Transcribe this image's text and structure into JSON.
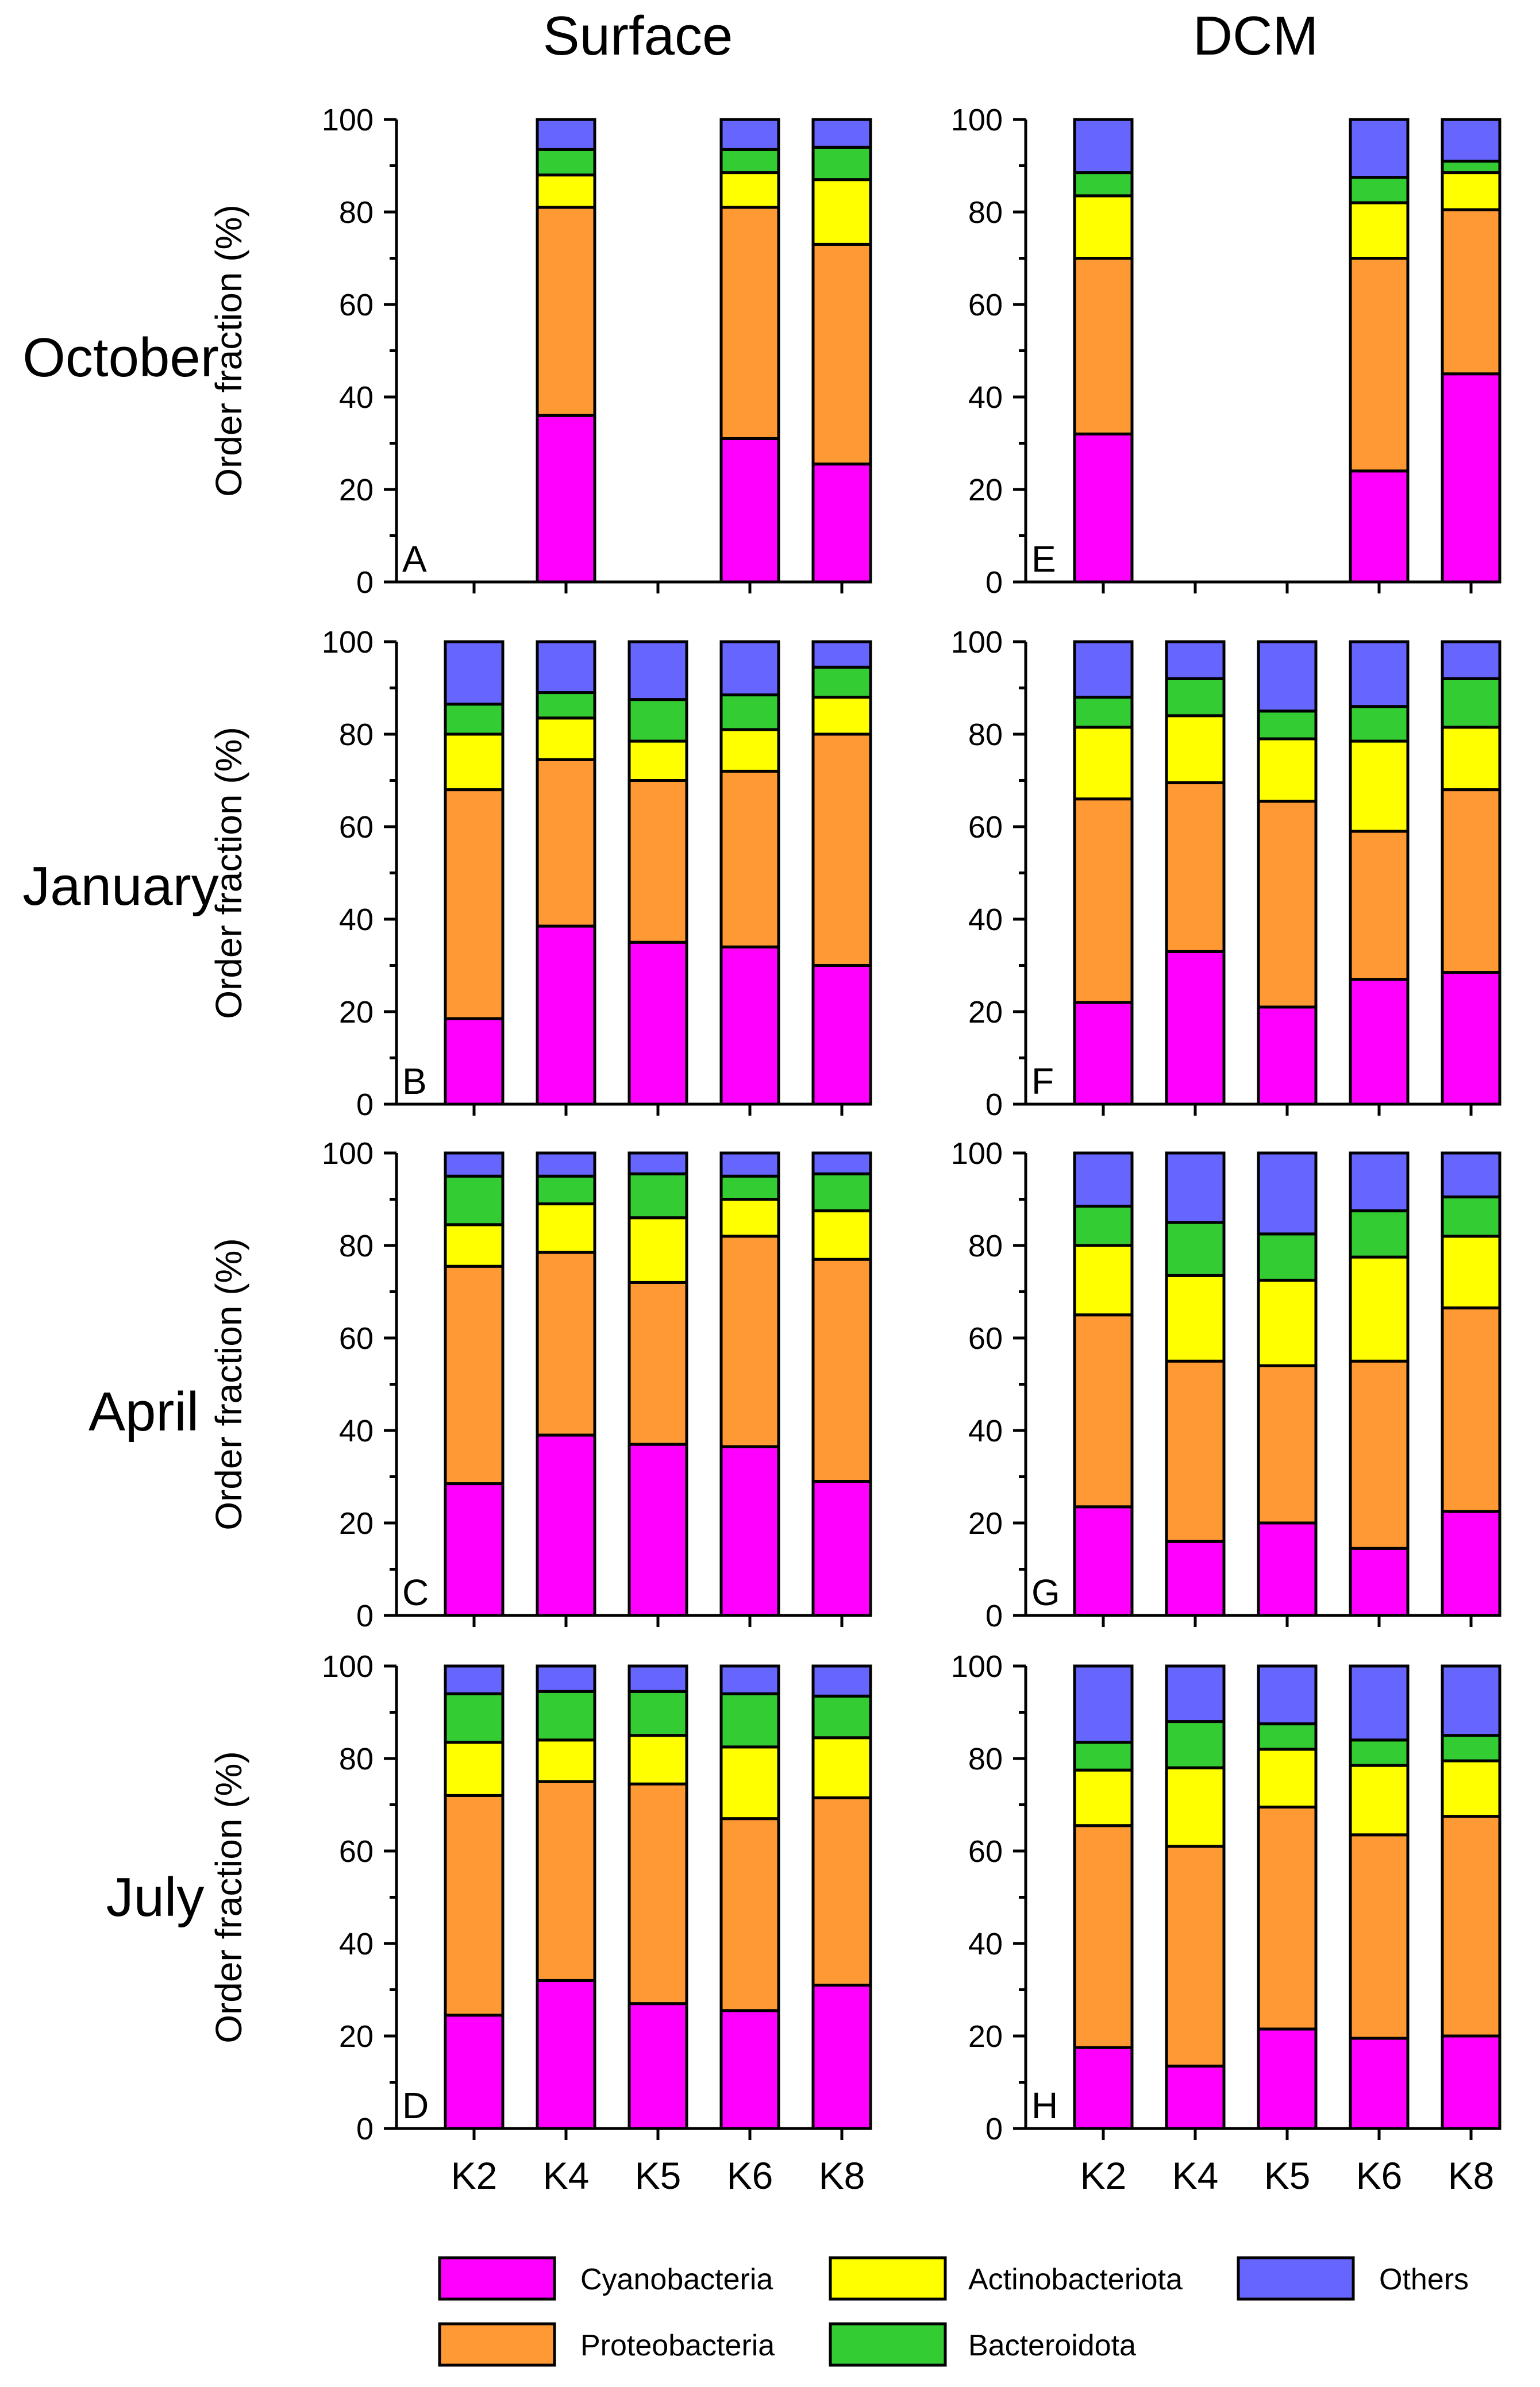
{
  "column_titles": [
    "Surface",
    "DCM"
  ],
  "row_labels": [
    "October",
    "January",
    "April",
    "July"
  ],
  "legend": [
    {
      "name": "Cyanobacteria",
      "color": "#ff00ff"
    },
    {
      "name": "Proteobacteria",
      "color": "#ff9933"
    },
    {
      "name": "Actinobacteriota",
      "color": "#ffff00"
    },
    {
      "name": "Bacteroidota",
      "color": "#33cc33"
    },
    {
      "name": "Others",
      "color": "#6666ff"
    }
  ],
  "chart_data": [
    {
      "type": "bar",
      "stacked": true,
      "panel": "A",
      "depth": "Surface",
      "month": "October",
      "ylabel": "Order fraction (%)",
      "ylim": [
        0,
        100
      ],
      "yticks": [
        0,
        20,
        40,
        60,
        80,
        100
      ],
      "categories": [
        "K2",
        "K4",
        "K5",
        "K6",
        "K8"
      ],
      "series": [
        {
          "name": "Cyanobacteria",
          "values": [
            null,
            36,
            null,
            31,
            25.5
          ]
        },
        {
          "name": "Proteobacteria",
          "values": [
            null,
            45,
            null,
            50,
            47.5
          ]
        },
        {
          "name": "Actinobacteriota",
          "values": [
            null,
            7,
            null,
            7.5,
            14
          ]
        },
        {
          "name": "Bacteroidota",
          "values": [
            null,
            5.5,
            null,
            5,
            7
          ]
        },
        {
          "name": "Others",
          "values": [
            null,
            6.5,
            null,
            6.5,
            6
          ]
        }
      ]
    },
    {
      "type": "bar",
      "stacked": true,
      "panel": "B",
      "depth": "Surface",
      "month": "January",
      "ylabel": "Order fraction (%)",
      "ylim": [
        0,
        100
      ],
      "yticks": [
        0,
        20,
        40,
        60,
        80,
        100
      ],
      "categories": [
        "K2",
        "K4",
        "K5",
        "K6",
        "K8"
      ],
      "series": [
        {
          "name": "Cyanobacteria",
          "values": [
            18.5,
            38.5,
            35,
            34,
            30
          ]
        },
        {
          "name": "Proteobacteria",
          "values": [
            49.5,
            36,
            35,
            38,
            50
          ]
        },
        {
          "name": "Actinobacteriota",
          "values": [
            12,
            9,
            8.5,
            9,
            8
          ]
        },
        {
          "name": "Bacteroidota",
          "values": [
            6.5,
            5.5,
            9,
            7.5,
            6.5
          ]
        },
        {
          "name": "Others",
          "values": [
            13.5,
            11,
            12.5,
            11.5,
            5.5
          ]
        }
      ]
    },
    {
      "type": "bar",
      "stacked": true,
      "panel": "C",
      "depth": "Surface",
      "month": "April",
      "ylabel": "Order fraction (%)",
      "ylim": [
        0,
        100
      ],
      "yticks": [
        0,
        20,
        40,
        60,
        80,
        100
      ],
      "categories": [
        "K2",
        "K4",
        "K5",
        "K6",
        "K8"
      ],
      "series": [
        {
          "name": "Cyanobacteria",
          "values": [
            28.5,
            39,
            37,
            36.5,
            29
          ]
        },
        {
          "name": "Proteobacteria",
          "values": [
            47,
            39.5,
            35,
            45.5,
            48
          ]
        },
        {
          "name": "Actinobacteriota",
          "values": [
            9,
            10.5,
            14,
            8,
            10.5
          ]
        },
        {
          "name": "Bacteroidota",
          "values": [
            10.5,
            6,
            9.5,
            5,
            8
          ]
        },
        {
          "name": "Others",
          "values": [
            5,
            5,
            4.5,
            5,
            4.5
          ]
        }
      ]
    },
    {
      "type": "bar",
      "stacked": true,
      "panel": "D",
      "depth": "Surface",
      "month": "July",
      "ylabel": "Order fraction (%)",
      "ylim": [
        0,
        100
      ],
      "yticks": [
        0,
        20,
        40,
        60,
        80,
        100
      ],
      "xlabels_shown": true,
      "categories": [
        "K2",
        "K4",
        "K5",
        "K6",
        "K8"
      ],
      "series": [
        {
          "name": "Cyanobacteria",
          "values": [
            24.5,
            32,
            27,
            25.5,
            31
          ]
        },
        {
          "name": "Proteobacteria",
          "values": [
            47.5,
            43,
            47.5,
            41.5,
            40.5
          ]
        },
        {
          "name": "Actinobacteriota",
          "values": [
            11.5,
            9,
            10.5,
            15.5,
            13
          ]
        },
        {
          "name": "Bacteroidota",
          "values": [
            10.5,
            10.5,
            9.5,
            11.5,
            9
          ]
        },
        {
          "name": "Others",
          "values": [
            6,
            5.5,
            5.5,
            6,
            6.5
          ]
        }
      ]
    },
    {
      "type": "bar",
      "stacked": true,
      "panel": "E",
      "depth": "DCM",
      "month": "October",
      "ylim": [
        0,
        100
      ],
      "yticks": [
        0,
        20,
        40,
        60,
        80,
        100
      ],
      "categories": [
        "K2",
        "K4",
        "K5",
        "K6",
        "K8"
      ],
      "series": [
        {
          "name": "Cyanobacteria",
          "values": [
            32,
            null,
            null,
            24,
            45
          ]
        },
        {
          "name": "Proteobacteria",
          "values": [
            38,
            null,
            null,
            46,
            35.5
          ]
        },
        {
          "name": "Actinobacteriota",
          "values": [
            13.5,
            null,
            null,
            12,
            8
          ]
        },
        {
          "name": "Bacteroidota",
          "values": [
            5,
            null,
            null,
            5.5,
            2.5
          ]
        },
        {
          "name": "Others",
          "values": [
            11.5,
            null,
            null,
            12.5,
            9
          ]
        }
      ]
    },
    {
      "type": "bar",
      "stacked": true,
      "panel": "F",
      "depth": "DCM",
      "month": "January",
      "ylim": [
        0,
        100
      ],
      "yticks": [
        0,
        20,
        40,
        60,
        80,
        100
      ],
      "categories": [
        "K2",
        "K4",
        "K5",
        "K6",
        "K8"
      ],
      "series": [
        {
          "name": "Cyanobacteria",
          "values": [
            22,
            33,
            21,
            27,
            28.5
          ]
        },
        {
          "name": "Proteobacteria",
          "values": [
            44,
            36.5,
            44.5,
            32,
            39.5
          ]
        },
        {
          "name": "Actinobacteriota",
          "values": [
            15.5,
            14.5,
            13.5,
            19.5,
            13.5
          ]
        },
        {
          "name": "Bacteroidota",
          "values": [
            6.5,
            8,
            6,
            7.5,
            10.5
          ]
        },
        {
          "name": "Others",
          "values": [
            12,
            8,
            15,
            14,
            8
          ]
        }
      ]
    },
    {
      "type": "bar",
      "stacked": true,
      "panel": "G",
      "depth": "DCM",
      "month": "April",
      "ylim": [
        0,
        100
      ],
      "yticks": [
        0,
        20,
        40,
        60,
        80,
        100
      ],
      "categories": [
        "K2",
        "K4",
        "K5",
        "K6",
        "K8"
      ],
      "series": [
        {
          "name": "Cyanobacteria",
          "values": [
            23.5,
            16,
            20,
            14.5,
            22.5
          ]
        },
        {
          "name": "Proteobacteria",
          "values": [
            41.5,
            39,
            34,
            40.5,
            44
          ]
        },
        {
          "name": "Actinobacteriota",
          "values": [
            15,
            18.5,
            18.5,
            22.5,
            15.5
          ]
        },
        {
          "name": "Bacteroidota",
          "values": [
            8.5,
            11.5,
            10,
            10,
            8.5
          ]
        },
        {
          "name": "Others",
          "values": [
            11.5,
            15,
            17.5,
            12.5,
            9.5
          ]
        }
      ]
    },
    {
      "type": "bar",
      "stacked": true,
      "panel": "H",
      "depth": "DCM",
      "month": "July",
      "ylim": [
        0,
        100
      ],
      "yticks": [
        0,
        20,
        40,
        60,
        80,
        100
      ],
      "xlabels_shown": true,
      "categories": [
        "K2",
        "K4",
        "K5",
        "K6",
        "K8"
      ],
      "series": [
        {
          "name": "Cyanobacteria",
          "values": [
            17.5,
            13.5,
            21.5,
            19.5,
            20
          ]
        },
        {
          "name": "Proteobacteria",
          "values": [
            48,
            47.5,
            48,
            44,
            47.5
          ]
        },
        {
          "name": "Actinobacteriota",
          "values": [
            12,
            17,
            12.5,
            15,
            12
          ]
        },
        {
          "name": "Bacteroidota",
          "values": [
            6,
            10,
            5.5,
            5.5,
            5.5
          ]
        },
        {
          "name": "Others",
          "values": [
            16.5,
            12,
            12.5,
            16,
            15
          ]
        }
      ]
    }
  ]
}
